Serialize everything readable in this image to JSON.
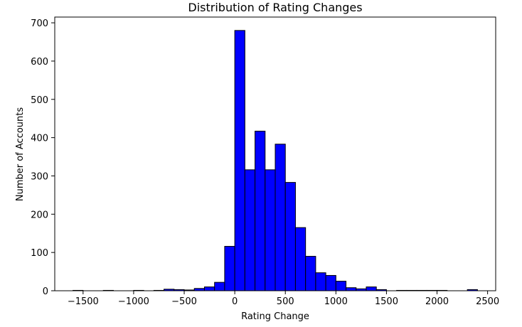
{
  "chart_data": {
    "type": "bar",
    "title": "Distribution of Rating Changes",
    "xlabel": "Rating Change",
    "ylabel": "Number of Accounts",
    "xlim": [
      -1780,
      2580
    ],
    "ylim": [
      0,
      715
    ],
    "x_ticks": [
      -1500,
      -1000,
      -500,
      0,
      500,
      1000,
      1500,
      2000,
      2500
    ],
    "y_ticks": [
      0,
      100,
      200,
      300,
      400,
      500,
      600,
      700
    ],
    "bar_color": "#0000ff",
    "edge_color": "#000000",
    "grid": false,
    "bins": [
      {
        "x0": -1600,
        "x1": -1500,
        "count": 1
      },
      {
        "x0": -1300,
        "x1": -1200,
        "count": 1
      },
      {
        "x0": -1000,
        "x1": -900,
        "count": 1
      },
      {
        "x0": -800,
        "x1": -700,
        "count": 1
      },
      {
        "x0": -700,
        "x1": -600,
        "count": 4
      },
      {
        "x0": -600,
        "x1": -500,
        "count": 3
      },
      {
        "x0": -500,
        "x1": -400,
        "count": 2
      },
      {
        "x0": -400,
        "x1": -300,
        "count": 6
      },
      {
        "x0": -300,
        "x1": -200,
        "count": 10
      },
      {
        "x0": -200,
        "x1": -100,
        "count": 22
      },
      {
        "x0": -100,
        "x1": 0,
        "count": 116
      },
      {
        "x0": 0,
        "x1": 100,
        "count": 680
      },
      {
        "x0": 100,
        "x1": 200,
        "count": 316
      },
      {
        "x0": 200,
        "x1": 300,
        "count": 417
      },
      {
        "x0": 300,
        "x1": 400,
        "count": 316
      },
      {
        "x0": 400,
        "x1": 500,
        "count": 383
      },
      {
        "x0": 500,
        "x1": 600,
        "count": 283
      },
      {
        "x0": 600,
        "x1": 700,
        "count": 165
      },
      {
        "x0": 700,
        "x1": 800,
        "count": 90
      },
      {
        "x0": 800,
        "x1": 900,
        "count": 47
      },
      {
        "x0": 900,
        "x1": 1000,
        "count": 40
      },
      {
        "x0": 1000,
        "x1": 1100,
        "count": 25
      },
      {
        "x0": 1100,
        "x1": 1200,
        "count": 8
      },
      {
        "x0": 1200,
        "x1": 1300,
        "count": 5
      },
      {
        "x0": 1300,
        "x1": 1400,
        "count": 10
      },
      {
        "x0": 1400,
        "x1": 1500,
        "count": 3
      },
      {
        "x0": 1600,
        "x1": 1700,
        "count": 1
      },
      {
        "x0": 1700,
        "x1": 1800,
        "count": 1
      },
      {
        "x0": 1800,
        "x1": 1900,
        "count": 1
      },
      {
        "x0": 1900,
        "x1": 2000,
        "count": 1
      },
      {
        "x0": 2000,
        "x1": 2100,
        "count": 1
      },
      {
        "x0": 2300,
        "x1": 2400,
        "count": 3
      }
    ]
  }
}
